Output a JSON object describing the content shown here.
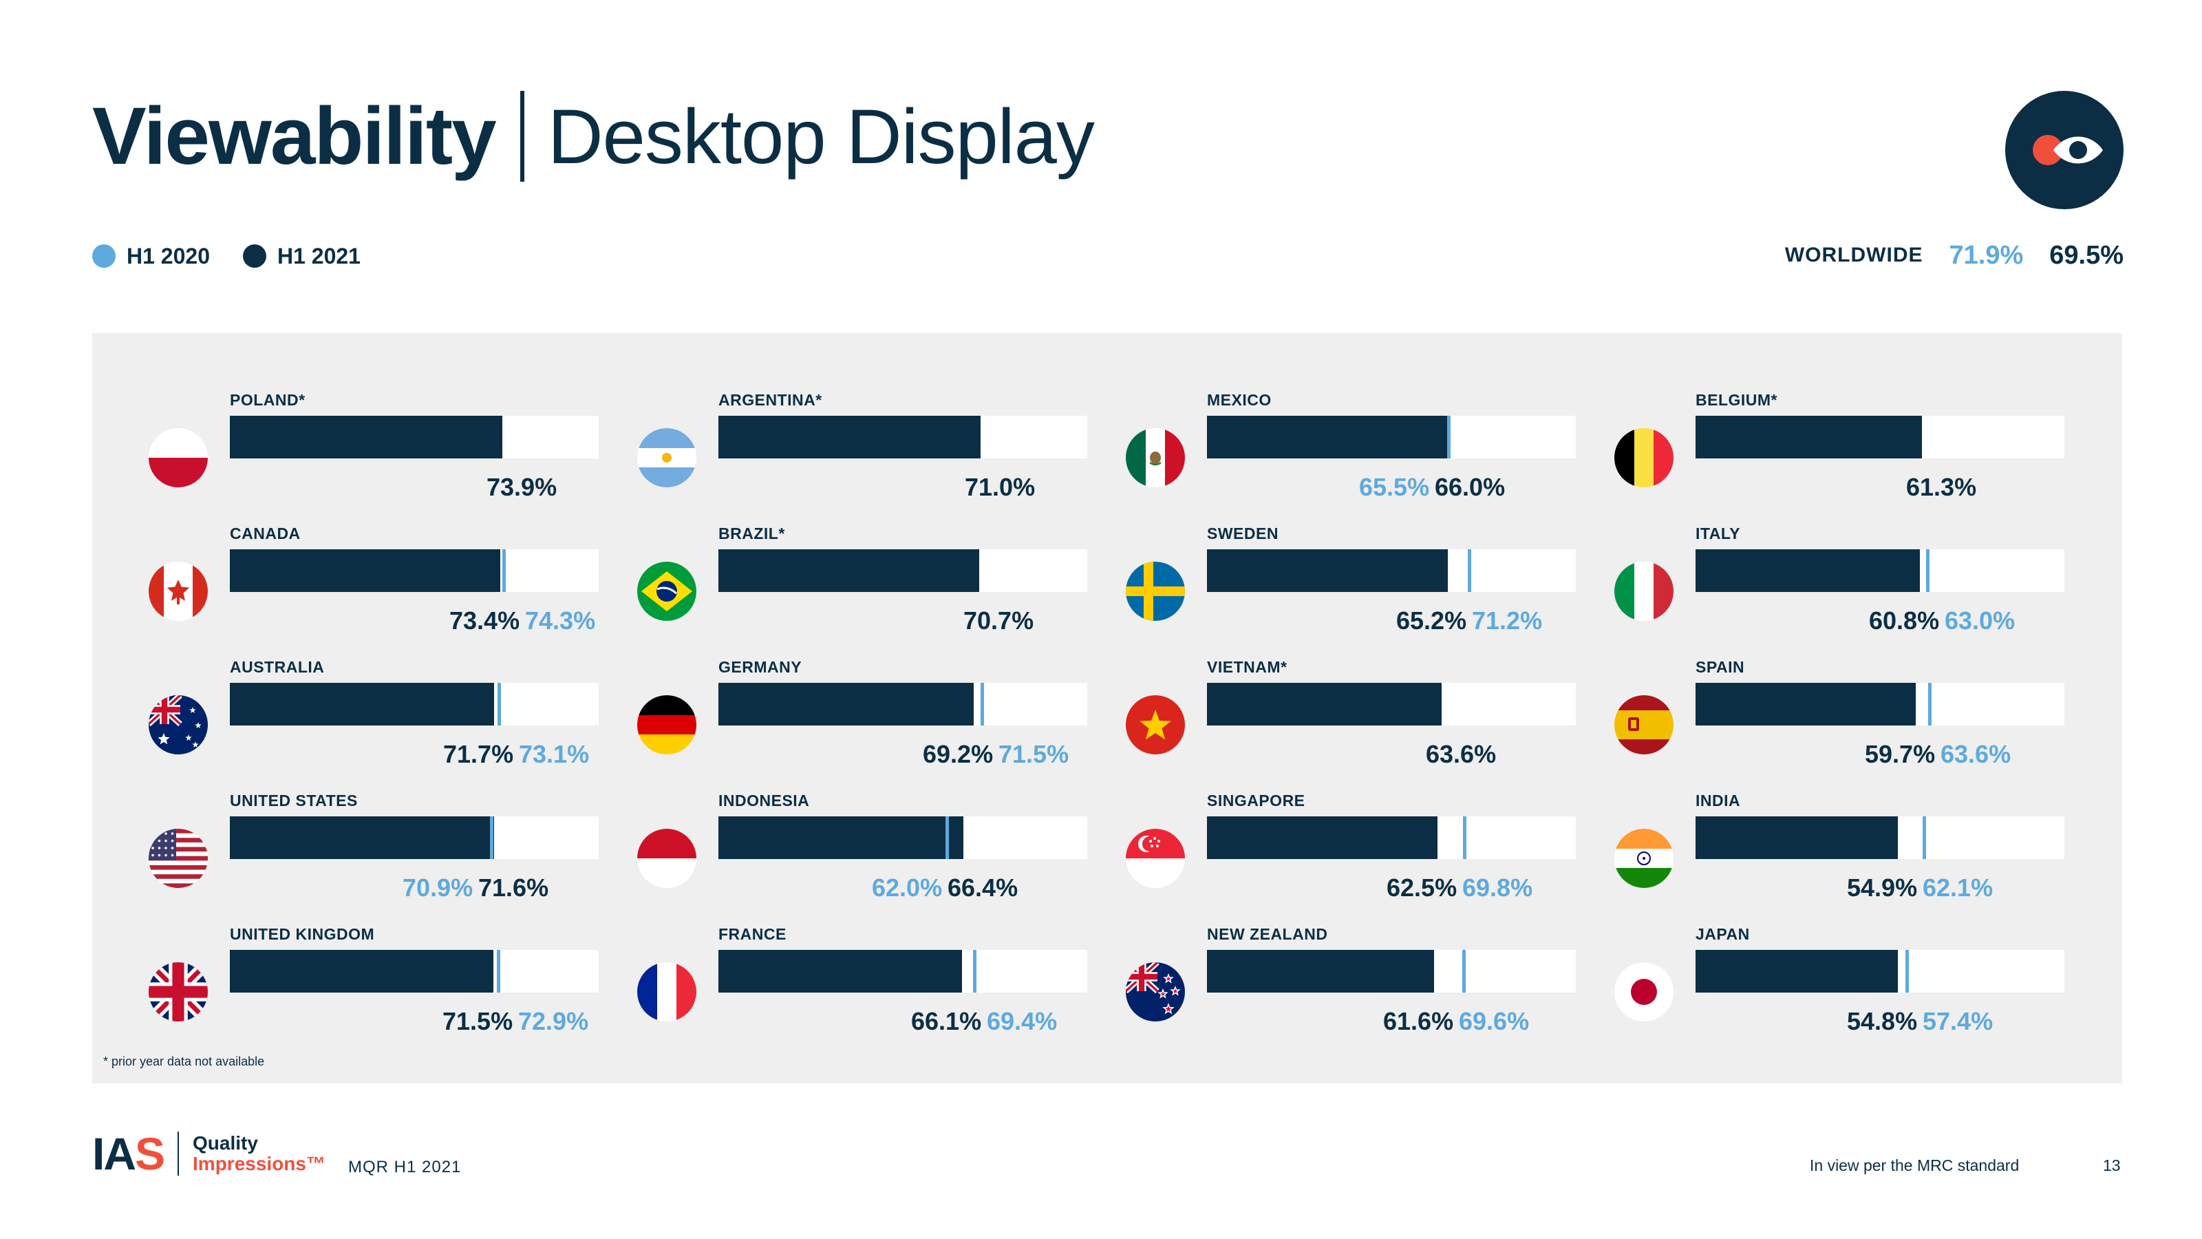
{
  "header": {
    "title_bold": "Viewability",
    "title_light": "Desktop Display"
  },
  "legend": [
    {
      "label": "H1 2020",
      "color": "#5ea9dd"
    },
    {
      "label": "H1 2021",
      "color": "#0b2e45"
    }
  ],
  "worldwide": {
    "label": "WORLDWIDE",
    "h1_2020": "71.9%",
    "h1_2021": "69.5%"
  },
  "colors": {
    "navy": "#0b2e45",
    "light_blue": "#5ea9dd",
    "brand_red": "#f04f3c",
    "panel_bg": "#efefef"
  },
  "brand_icon": "eye-logo-icon",
  "chart_data": {
    "type": "bar",
    "orientation": "horizontal",
    "xlim": [
      0,
      100
    ],
    "unit": "%",
    "series_names": [
      "H1 2020",
      "H1 2021"
    ],
    "items": [
      {
        "country": "POLAND*",
        "flag": "poland-flag-icon",
        "h1_2021": 73.9,
        "h1_2020": null,
        "h1_2021_label": "73.9%",
        "h1_2020_label": ""
      },
      {
        "country": "CANADA",
        "flag": "canada-flag-icon",
        "h1_2021": 73.4,
        "h1_2020": 74.3,
        "h1_2021_label": "73.4%",
        "h1_2020_label": "74.3%"
      },
      {
        "country": "AUSTRALIA",
        "flag": "australia-flag-icon",
        "h1_2021": 71.7,
        "h1_2020": 73.1,
        "h1_2021_label": "71.7%",
        "h1_2020_label": "73.1%"
      },
      {
        "country": "UNITED STATES",
        "flag": "united-states-flag-icon",
        "h1_2021": 71.6,
        "h1_2020": 70.9,
        "h1_2021_label": "71.6%",
        "h1_2020_label": "70.9%"
      },
      {
        "country": "UNITED KINGDOM",
        "flag": "united-kingdom-flag-icon",
        "h1_2021": 71.5,
        "h1_2020": 72.9,
        "h1_2021_label": "71.5%",
        "h1_2020_label": "72.9%"
      },
      {
        "country": "ARGENTINA*",
        "flag": "argentina-flag-icon",
        "h1_2021": 71.0,
        "h1_2020": null,
        "h1_2021_label": "71.0%",
        "h1_2020_label": ""
      },
      {
        "country": "BRAZIL*",
        "flag": "brazil-flag-icon",
        "h1_2021": 70.7,
        "h1_2020": null,
        "h1_2021_label": "70.7%",
        "h1_2020_label": ""
      },
      {
        "country": "GERMANY",
        "flag": "germany-flag-icon",
        "h1_2021": 69.2,
        "h1_2020": 71.5,
        "h1_2021_label": "69.2%",
        "h1_2020_label": "71.5%"
      },
      {
        "country": "INDONESIA",
        "flag": "indonesia-flag-icon",
        "h1_2021": 66.4,
        "h1_2020": 62.0,
        "h1_2021_label": "66.4%",
        "h1_2020_label": "62.0%"
      },
      {
        "country": "FRANCE",
        "flag": "france-flag-icon",
        "h1_2021": 66.1,
        "h1_2020": 69.4,
        "h1_2021_label": "66.1%",
        "h1_2020_label": "69.4%"
      },
      {
        "country": "MEXICO",
        "flag": "mexico-flag-icon",
        "h1_2021": 66.0,
        "h1_2020": 65.5,
        "h1_2021_label": "66.0%",
        "h1_2020_label": "65.5%"
      },
      {
        "country": "SWEDEN",
        "flag": "sweden-flag-icon",
        "h1_2021": 65.2,
        "h1_2020": 71.2,
        "h1_2021_label": "65.2%",
        "h1_2020_label": "71.2%"
      },
      {
        "country": "VIETNAM*",
        "flag": "vietnam-flag-icon",
        "h1_2021": 63.6,
        "h1_2020": null,
        "h1_2021_label": "63.6%",
        "h1_2020_label": ""
      },
      {
        "country": "SINGAPORE",
        "flag": "singapore-flag-icon",
        "h1_2021": 62.5,
        "h1_2020": 69.8,
        "h1_2021_label": "62.5%",
        "h1_2020_label": "69.8%"
      },
      {
        "country": "NEW ZEALAND",
        "flag": "new-zealand-flag-icon",
        "h1_2021": 61.6,
        "h1_2020": 69.6,
        "h1_2021_label": "61.6%",
        "h1_2020_label": "69.6%"
      },
      {
        "country": "BELGIUM*",
        "flag": "belgium-flag-icon",
        "h1_2021": 61.3,
        "h1_2020": null,
        "h1_2021_label": "61.3%",
        "h1_2020_label": ""
      },
      {
        "country": "ITALY",
        "flag": "italy-flag-icon",
        "h1_2021": 60.8,
        "h1_2020": 63.0,
        "h1_2021_label": "60.8%",
        "h1_2020_label": "63.0%"
      },
      {
        "country": "SPAIN",
        "flag": "spain-flag-icon",
        "h1_2021": 59.7,
        "h1_2020": 63.6,
        "h1_2021_label": "59.7%",
        "h1_2020_label": "63.6%"
      },
      {
        "country": "INDIA",
        "flag": "india-flag-icon",
        "h1_2021": 54.9,
        "h1_2020": 62.1,
        "h1_2021_label": "54.9%",
        "h1_2020_label": "62.1%"
      },
      {
        "country": "JAPAN",
        "flag": "japan-flag-icon",
        "h1_2021": 54.8,
        "h1_2020": 57.4,
        "h1_2021_label": "54.8%",
        "h1_2020_label": "57.4%"
      }
    ]
  },
  "footnote": "* prior year data not available",
  "footer": {
    "logo_ias_left": "IA",
    "logo_ias_s": "S",
    "logo_line1": "Quality",
    "logo_line2": "Impressions™",
    "report": "MQR H1 2021",
    "note": "In view per the MRC standard",
    "page": "13"
  }
}
